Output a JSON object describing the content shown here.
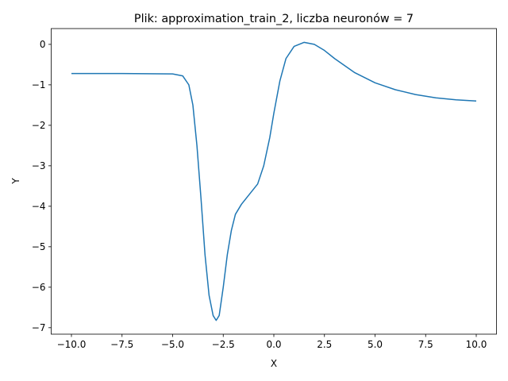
{
  "chart_data": {
    "type": "line",
    "title": "Plik: approximation_train_2, liczba neuronów = 7",
    "x_label": "X",
    "y_label": "Y",
    "x": [
      -10,
      -7.5,
      -5,
      -4.5,
      -4.2,
      -4.0,
      -3.8,
      -3.6,
      -3.4,
      -3.2,
      -3.0,
      -2.85,
      -2.7,
      -2.5,
      -2.3,
      -2.1,
      -1.9,
      -1.6,
      -1.2,
      -0.8,
      -0.5,
      -0.2,
      0,
      0.3,
      0.6,
      1.0,
      1.5,
      2.0,
      2.5,
      3.0,
      4.0,
      5.0,
      6.0,
      7.0,
      8.0,
      9.0,
      10.0
    ],
    "series": [
      {
        "name": "Y",
        "color": "#1f77b4",
        "values": [
          -0.72,
          -0.72,
          -0.73,
          -0.78,
          -1.0,
          -1.5,
          -2.5,
          -3.8,
          -5.2,
          -6.2,
          -6.7,
          -6.82,
          -6.7,
          -6.0,
          -5.2,
          -4.6,
          -4.2,
          -3.95,
          -3.7,
          -3.45,
          -3.0,
          -2.3,
          -1.7,
          -0.9,
          -0.35,
          -0.05,
          0.05,
          0.0,
          -0.15,
          -0.35,
          -0.7,
          -0.95,
          -1.12,
          -1.24,
          -1.32,
          -1.37,
          -1.4
        ]
      }
    ],
    "xlim": [
      -11,
      11
    ],
    "ylim": [
      -7.16,
      0.39
    ],
    "xticks": [
      {
        "value": -10,
        "label": "−10.0"
      },
      {
        "value": -7.5,
        "label": "−7.5"
      },
      {
        "value": -5,
        "label": "−5.0"
      },
      {
        "value": -2.5,
        "label": "−2.5"
      },
      {
        "value": 0,
        "label": "0.0"
      },
      {
        "value": 2.5,
        "label": "2.5"
      },
      {
        "value": 5,
        "label": "5.0"
      },
      {
        "value": 7.5,
        "label": "7.5"
      },
      {
        "value": 10,
        "label": "10.0"
      }
    ],
    "yticks": [
      0,
      {
        "value": -1,
        "label": "−1"
      },
      {
        "value": -2,
        "label": "−2"
      },
      {
        "value": -3,
        "label": "−3"
      },
      {
        "value": -4,
        "label": "−4"
      },
      {
        "value": -5,
        "label": "−5"
      },
      {
        "value": -6,
        "label": "−6"
      },
      {
        "value": -7,
        "label": "−7"
      }
    ]
  }
}
